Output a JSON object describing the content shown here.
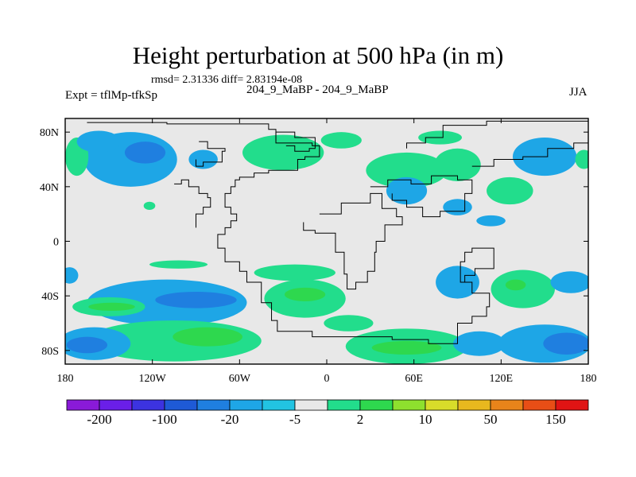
{
  "title": "Height perturbation at 500 hPa (in m)",
  "stats": "rmsd= 2.31336 diff= 2.83194e-08",
  "expt_label": "Expt = tflMp-tfkSp",
  "center_label": "204_9_MaBP - 204_9_MaBP",
  "season": "JJA",
  "chart_data": {
    "type": "heatmap",
    "title": "Height perturbation at 500 hPa (in m)",
    "xlabel": "",
    "ylabel": "",
    "xlim": [
      -180,
      180
    ],
    "ylim": [
      -90,
      90
    ],
    "x_ticks": [
      {
        "value": -180,
        "label": "180"
      },
      {
        "value": -120,
        "label": "120W"
      },
      {
        "value": -60,
        "label": "60W"
      },
      {
        "value": 0,
        "label": "0"
      },
      {
        "value": 60,
        "label": "60E"
      },
      {
        "value": 120,
        "label": "120E"
      },
      {
        "value": 180,
        "label": "180"
      }
    ],
    "y_ticks": [
      {
        "value": 80,
        "label": "80N"
      },
      {
        "value": 40,
        "label": "40N"
      },
      {
        "value": 0,
        "label": "0"
      },
      {
        "value": -40,
        "label": "40S"
      },
      {
        "value": -80,
        "label": "80S"
      }
    ],
    "colorbar": {
      "colors": [
        "#8a1ad8",
        "#6a1fe8",
        "#3c33e0",
        "#1e5ad6",
        "#1f7fe0",
        "#1ea6e6",
        "#22c3e2",
        "#e8e8e8",
        "#22dd8c",
        "#2ed84e",
        "#8ee02e",
        "#d8dc2a",
        "#e8b81e",
        "#e8841a",
        "#e84e16",
        "#e01414"
      ],
      "labels": [
        "-200",
        "-100",
        "-20",
        "-5",
        "2",
        "10",
        "50",
        "150"
      ]
    },
    "regions": [
      {
        "level": -5,
        "color": "#1ea6e6",
        "lon": -135,
        "lat": 60,
        "rlon": 32,
        "rlat": 20
      },
      {
        "level": -20,
        "color": "#1f7fe0",
        "lon": -125,
        "lat": 65,
        "rlon": 14,
        "rlat": 8
      },
      {
        "level": -5,
        "color": "#1ea6e6",
        "lon": -85,
        "lat": 60,
        "rlon": 10,
        "rlat": 7
      },
      {
        "level": 2,
        "color": "#22dd8c",
        "lon": -172,
        "lat": 62,
        "rlon": 8,
        "rlat": 14
      },
      {
        "level": -5,
        "color": "#1ea6e6",
        "lon": -157,
        "lat": 73,
        "rlon": 15,
        "rlat": 8
      },
      {
        "level": 2,
        "color": "#22dd8c",
        "lon": -30,
        "lat": 65,
        "rlon": 28,
        "rlat": 13
      },
      {
        "level": 2,
        "color": "#22dd8c",
        "lon": 10,
        "lat": 74,
        "rlon": 14,
        "rlat": 6
      },
      {
        "level": 2,
        "color": "#22dd8c",
        "lon": 55,
        "lat": 52,
        "rlon": 28,
        "rlat": 13
      },
      {
        "level": 2,
        "color": "#22dd8c",
        "lon": 90,
        "lat": 56,
        "rlon": 16,
        "rlat": 12
      },
      {
        "level": 2,
        "color": "#22dd8c",
        "lon": 78,
        "lat": 76,
        "rlon": 15,
        "rlat": 5
      },
      {
        "level": -5,
        "color": "#1ea6e6",
        "lon": 150,
        "lat": 62,
        "rlon": 22,
        "rlat": 14
      },
      {
        "level": 2,
        "color": "#22dd8c",
        "lon": 126,
        "lat": 37,
        "rlon": 16,
        "rlat": 10
      },
      {
        "level": 2,
        "color": "#22dd8c",
        "lon": 177,
        "lat": 60,
        "rlon": 6,
        "rlat": 7
      },
      {
        "level": -5,
        "color": "#1ea6e6",
        "lon": 55,
        "lat": 37,
        "rlon": 14,
        "rlat": 10
      },
      {
        "level": -5,
        "color": "#1ea6e6",
        "lon": 90,
        "lat": 25,
        "rlon": 10,
        "rlat": 6
      },
      {
        "level": -5,
        "color": "#1ea6e6",
        "lon": 113,
        "lat": 15,
        "rlon": 10,
        "rlat": 4
      },
      {
        "level": 2,
        "color": "#22dd8c",
        "lon": -122,
        "lat": 26,
        "rlon": 4,
        "rlat": 3
      },
      {
        "level": 2,
        "color": "#22dd8c",
        "lon": -22,
        "lat": -23,
        "rlon": 28,
        "rlat": 6
      },
      {
        "level": 2,
        "color": "#22dd8c",
        "lon": -102,
        "lat": -17,
        "rlon": 20,
        "rlat": 3
      },
      {
        "level": -5,
        "color": "#1ea6e6",
        "lon": -110,
        "lat": -45,
        "rlon": 55,
        "rlat": 17
      },
      {
        "level": 2,
        "color": "#22dd8c",
        "lon": -150,
        "lat": -48,
        "rlon": 25,
        "rlat": 7
      },
      {
        "level": 10,
        "color": "#2ed84e",
        "lon": -148,
        "lat": -48,
        "rlon": 16,
        "rlat": 3
      },
      {
        "level": -20,
        "color": "#1f7fe0",
        "lon": -90,
        "lat": -43,
        "rlon": 28,
        "rlat": 6
      },
      {
        "level": 2,
        "color": "#22dd8c",
        "lon": -15,
        "lat": -42,
        "rlon": 28,
        "rlat": 14
      },
      {
        "level": 10,
        "color": "#2ed84e",
        "lon": -15,
        "lat": -39,
        "rlon": 14,
        "rlat": 5
      },
      {
        "level": 2,
        "color": "#22dd8c",
        "lon": 15,
        "lat": -60,
        "rlon": 17,
        "rlat": 6
      },
      {
        "level": -5,
        "color": "#1ea6e6",
        "lon": 90,
        "lat": -30,
        "rlon": 15,
        "rlat": 12
      },
      {
        "level": 2,
        "color": "#22dd8c",
        "lon": 135,
        "lat": -35,
        "rlon": 22,
        "rlat": 14
      },
      {
        "level": 10,
        "color": "#2ed84e",
        "lon": 130,
        "lat": -32,
        "rlon": 7,
        "rlat": 4
      },
      {
        "level": -5,
        "color": "#1ea6e6",
        "lon": 168,
        "lat": -30,
        "rlon": 14,
        "rlat": 8
      },
      {
        "level": 2,
        "color": "#22dd8c",
        "lon": -105,
        "lat": -73,
        "rlon": 60,
        "rlat": 15
      },
      {
        "level": -5,
        "color": "#1ea6e6",
        "lon": -160,
        "lat": -75,
        "rlon": 25,
        "rlat": 12
      },
      {
        "level": -20,
        "color": "#1f7fe0",
        "lon": -165,
        "lat": -76,
        "rlon": 14,
        "rlat": 6
      },
      {
        "level": 10,
        "color": "#2ed84e",
        "lon": -82,
        "lat": -70,
        "rlon": 24,
        "rlat": 7
      },
      {
        "level": 2,
        "color": "#22dd8c",
        "lon": 55,
        "lat": -77,
        "rlon": 42,
        "rlat": 13
      },
      {
        "level": 10,
        "color": "#2ed84e",
        "lon": 55,
        "lat": -78,
        "rlon": 24,
        "rlat": 5
      },
      {
        "level": -5,
        "color": "#1ea6e6",
        "lon": 150,
        "lat": -75,
        "rlon": 32,
        "rlat": 14
      },
      {
        "level": -20,
        "color": "#1f7fe0",
        "lon": 165,
        "lat": -75,
        "rlon": 16,
        "rlat": 8
      },
      {
        "level": -5,
        "color": "#1ea6e6",
        "lon": 105,
        "lat": -75,
        "rlon": 18,
        "rlat": 9
      },
      {
        "level": -5,
        "color": "#1ea6e6",
        "lon": -177,
        "lat": -25,
        "rlon": 6,
        "rlat": 6
      }
    ],
    "coastlines": [
      [
        [
          -165,
          87
        ],
        [
          -145,
          87
        ],
        [
          -110,
          86
        ],
        [
          -50,
          86
        ],
        [
          -40,
          82
        ],
        [
          -35,
          72
        ],
        [
          -20,
          72
        ],
        [
          -10,
          70
        ],
        [
          -5,
          62
        ],
        [
          -15,
          60
        ],
        [
          -20,
          52
        ],
        [
          -40,
          50
        ],
        [
          -50,
          47
        ],
        [
          -60,
          45
        ],
        [
          -63,
          40
        ],
        [
          -66,
          35
        ],
        [
          -70,
          25
        ],
        [
          -66,
          20
        ],
        [
          -62,
          15
        ],
        [
          -66,
          10
        ],
        [
          -70,
          5
        ],
        [
          -75,
          -5
        ],
        [
          -70,
          -15
        ],
        [
          -60,
          -22
        ],
        [
          -55,
          -30
        ],
        [
          -45,
          -45
        ],
        [
          -38,
          -58
        ],
        [
          -34,
          -66
        ],
        [
          -10,
          -70
        ],
        [
          20,
          -70
        ],
        [
          45,
          -72
        ],
        [
          70,
          -75
        ],
        [
          90,
          -60
        ],
        [
          100,
          -55
        ],
        [
          110,
          -48
        ],
        [
          112,
          -38
        ],
        [
          100,
          -30
        ],
        [
          92,
          -15
        ],
        [
          95,
          -8
        ],
        [
          100,
          -5
        ],
        [
          115,
          -20
        ],
        [
          102,
          -25
        ],
        [
          95,
          -30
        ]
      ],
      [
        [
          -105,
          42
        ],
        [
          -100,
          45
        ],
        [
          -95,
          40
        ],
        [
          -88,
          35
        ],
        [
          -82,
          32
        ],
        [
          -80,
          25
        ],
        [
          -85,
          20
        ],
        [
          -90,
          10
        ]
      ],
      [
        [
          -88,
          73
        ],
        [
          -82,
          68
        ],
        [
          -70,
          66
        ],
        [
          -72,
          58
        ],
        [
          -85,
          55
        ],
        [
          -90,
          60
        ]
      ],
      [
        [
          -28,
          70
        ],
        [
          -22,
          66
        ],
        [
          -12,
          68
        ],
        [
          -8,
          76
        ],
        [
          -22,
          80
        ],
        [
          -35,
          74
        ]
      ],
      [
        [
          -5,
          20
        ],
        [
          10,
          28
        ],
        [
          30,
          35
        ],
        [
          38,
          24
        ],
        [
          48,
          18
        ],
        [
          52,
          12
        ],
        [
          40,
          0
        ],
        [
          34,
          -8
        ],
        [
          33,
          -22
        ],
        [
          28,
          -30
        ],
        [
          20,
          -35
        ],
        [
          14,
          -24
        ],
        [
          12,
          -8
        ],
        [
          6,
          6
        ],
        [
          -8,
          8
        ],
        [
          -16,
          14
        ]
      ],
      [
        [
          30,
          40
        ],
        [
          42,
          45
        ],
        [
          58,
          42
        ],
        [
          72,
          48
        ],
        [
          90,
          45
        ],
        [
          100,
          35
        ],
        [
          95,
          22
        ],
        [
          78,
          18
        ],
        [
          66,
          25
        ],
        [
          55,
          30
        ],
        [
          45,
          35
        ]
      ],
      [
        [
          100,
          55
        ],
        [
          115,
          60
        ],
        [
          135,
          62
        ],
        [
          152,
          68
        ],
        [
          170,
          72
        ],
        [
          180,
          78
        ],
        [
          180,
          88
        ],
        [
          110,
          85
        ],
        [
          80,
          76
        ],
        [
          68,
          72
        ],
        [
          55,
          68
        ]
      ]
    ]
  }
}
